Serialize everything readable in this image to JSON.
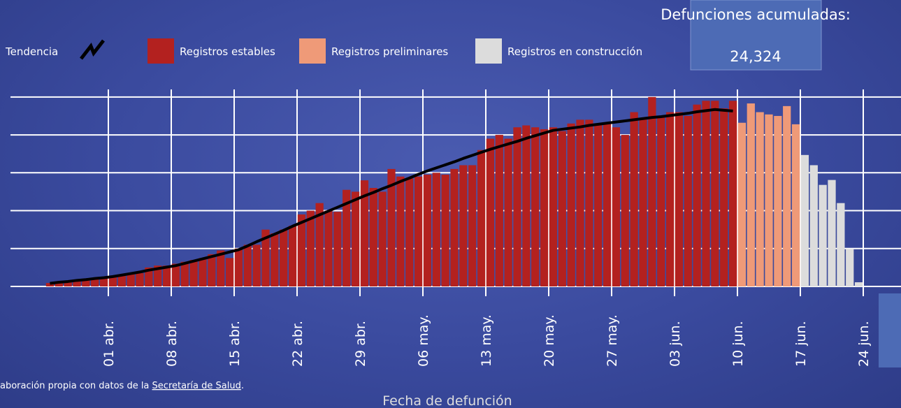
{
  "chart_data": {
    "type": "bar",
    "x_label": "Fecha de defunción",
    "categories": [
      null,
      null,
      null,
      null,
      null,
      null,
      "01 abr.",
      null,
      null,
      null,
      null,
      null,
      null,
      "08 abr.",
      null,
      null,
      null,
      null,
      null,
      null,
      "15 abr.",
      null,
      null,
      null,
      null,
      null,
      null,
      "22 abr.",
      null,
      null,
      null,
      null,
      null,
      null,
      "29 abr.",
      null,
      null,
      null,
      null,
      null,
      null,
      "06 may.",
      null,
      null,
      null,
      null,
      null,
      null,
      "13 may.",
      null,
      null,
      null,
      null,
      null,
      null,
      "20 may.",
      null,
      null,
      null,
      null,
      null,
      null,
      "27 may.",
      null,
      null,
      null,
      null,
      null,
      null,
      "03 jun.",
      null,
      null,
      null,
      null,
      null,
      null,
      "10 jun.",
      null,
      null,
      null,
      null,
      null,
      null,
      "17 jun.",
      null,
      null,
      null,
      null,
      null,
      null,
      "24 jun."
    ],
    "ylim": [
      0,
      5.2
    ],
    "ygrid": [
      0,
      1,
      2,
      3,
      4,
      5
    ],
    "grid": true,
    "trend": {
      "name": "Tendencia",
      "color": "#000000",
      "values": [
        0.08,
        0.11,
        0.13,
        0.16,
        0.18,
        0.21,
        0.23,
        0.26,
        0.3,
        0.34,
        0.38,
        0.43,
        0.47,
        0.51,
        0.55,
        0.61,
        0.67,
        0.73,
        0.79,
        0.85,
        0.91,
        0.97,
        1.07,
        1.18,
        1.28,
        1.38,
        1.48,
        1.59,
        1.69,
        1.79,
        1.89,
        1.99,
        2.09,
        2.19,
        2.29,
        2.39,
        2.48,
        2.58,
        2.67,
        2.77,
        2.86,
        2.96,
        3.05,
        3.13,
        3.21,
        3.29,
        3.38,
        3.46,
        3.54,
        3.62,
        3.69,
        3.76,
        3.83,
        3.91,
        3.98,
        4.05,
        4.12,
        4.15,
        4.18,
        4.21,
        4.25,
        4.28,
        4.31,
        4.34,
        4.37,
        4.4,
        4.43,
        4.46,
        4.48,
        4.51,
        4.54,
        4.57,
        4.61,
        4.64,
        4.67,
        4.65,
        4.63,
        null,
        null,
        null,
        null,
        null,
        null,
        null,
        null,
        null,
        null,
        null,
        null,
        null,
        null
      ]
    },
    "series": [
      {
        "name": "Registros estables",
        "color": "#b3211f",
        "values": [
          0.09,
          0.11,
          0.13,
          0.15,
          0.18,
          0.22,
          0.25,
          0.28,
          0.3,
          0.32,
          0.35,
          0.5,
          0.55,
          0.55,
          0.6,
          0.65,
          0.7,
          0.75,
          0.85,
          0.95,
          0.75,
          1.0,
          1.1,
          1.1,
          1.5,
          1.4,
          1.5,
          1.6,
          1.9,
          2.0,
          2.2,
          2.0,
          1.97,
          2.55,
          2.5,
          2.8,
          2.6,
          2.5,
          3.1,
          2.9,
          2.85,
          2.9,
          2.95,
          3.0,
          2.95,
          3.1,
          3.2,
          3.2,
          3.6,
          3.9,
          4.0,
          3.9,
          4.2,
          4.25,
          4.2,
          4.15,
          4.2,
          4.1,
          4.3,
          4.4,
          4.4,
          4.3,
          4.3,
          4.2,
          4.0,
          4.6,
          4.45,
          5.0,
          4.5,
          4.6,
          4.6,
          4.5,
          4.8,
          4.9,
          4.9,
          4.7,
          4.9,
          null,
          null,
          null,
          null,
          null,
          null,
          null,
          null,
          null,
          null,
          null,
          null,
          null,
          null
        ]
      },
      {
        "name": "Registros preliminares",
        "color": "#ef9a78",
        "values": [
          null,
          null,
          null,
          null,
          null,
          null,
          null,
          null,
          null,
          null,
          null,
          null,
          null,
          null,
          null,
          null,
          null,
          null,
          null,
          null,
          null,
          null,
          null,
          null,
          null,
          null,
          null,
          null,
          null,
          null,
          null,
          null,
          null,
          null,
          null,
          null,
          null,
          null,
          null,
          null,
          null,
          null,
          null,
          null,
          null,
          null,
          null,
          null,
          null,
          null,
          null,
          null,
          null,
          null,
          null,
          null,
          null,
          null,
          null,
          null,
          null,
          null,
          null,
          null,
          null,
          null,
          null,
          null,
          null,
          null,
          null,
          null,
          null,
          null,
          null,
          null,
          null,
          4.32,
          4.83,
          4.6,
          4.54,
          4.5,
          4.76,
          4.28,
          null,
          null,
          null,
          null,
          null,
          null,
          null
        ]
      },
      {
        "name": "Registros en construcción",
        "color": "#dcdcdc",
        "values": [
          null,
          null,
          null,
          null,
          null,
          null,
          null,
          null,
          null,
          null,
          null,
          null,
          null,
          null,
          null,
          null,
          null,
          null,
          null,
          null,
          null,
          null,
          null,
          null,
          null,
          null,
          null,
          null,
          null,
          null,
          null,
          null,
          null,
          null,
          null,
          null,
          null,
          null,
          null,
          null,
          null,
          null,
          null,
          null,
          null,
          null,
          null,
          null,
          null,
          null,
          null,
          null,
          null,
          null,
          null,
          null,
          null,
          null,
          null,
          null,
          null,
          null,
          null,
          null,
          null,
          null,
          null,
          null,
          null,
          null,
          null,
          null,
          null,
          null,
          null,
          null,
          null,
          null,
          null,
          null,
          null,
          null,
          null,
          null,
          3.47,
          3.2,
          2.68,
          2.81,
          2.2,
          0.99,
          0.11
        ]
      }
    ],
    "summary": {
      "label": "Defunciones acumuladas:",
      "value_label": "24,324"
    },
    "source": {
      "text": "aboración propia con datos de la ",
      "link": "Secretaría de Salud",
      "end": "."
    }
  }
}
